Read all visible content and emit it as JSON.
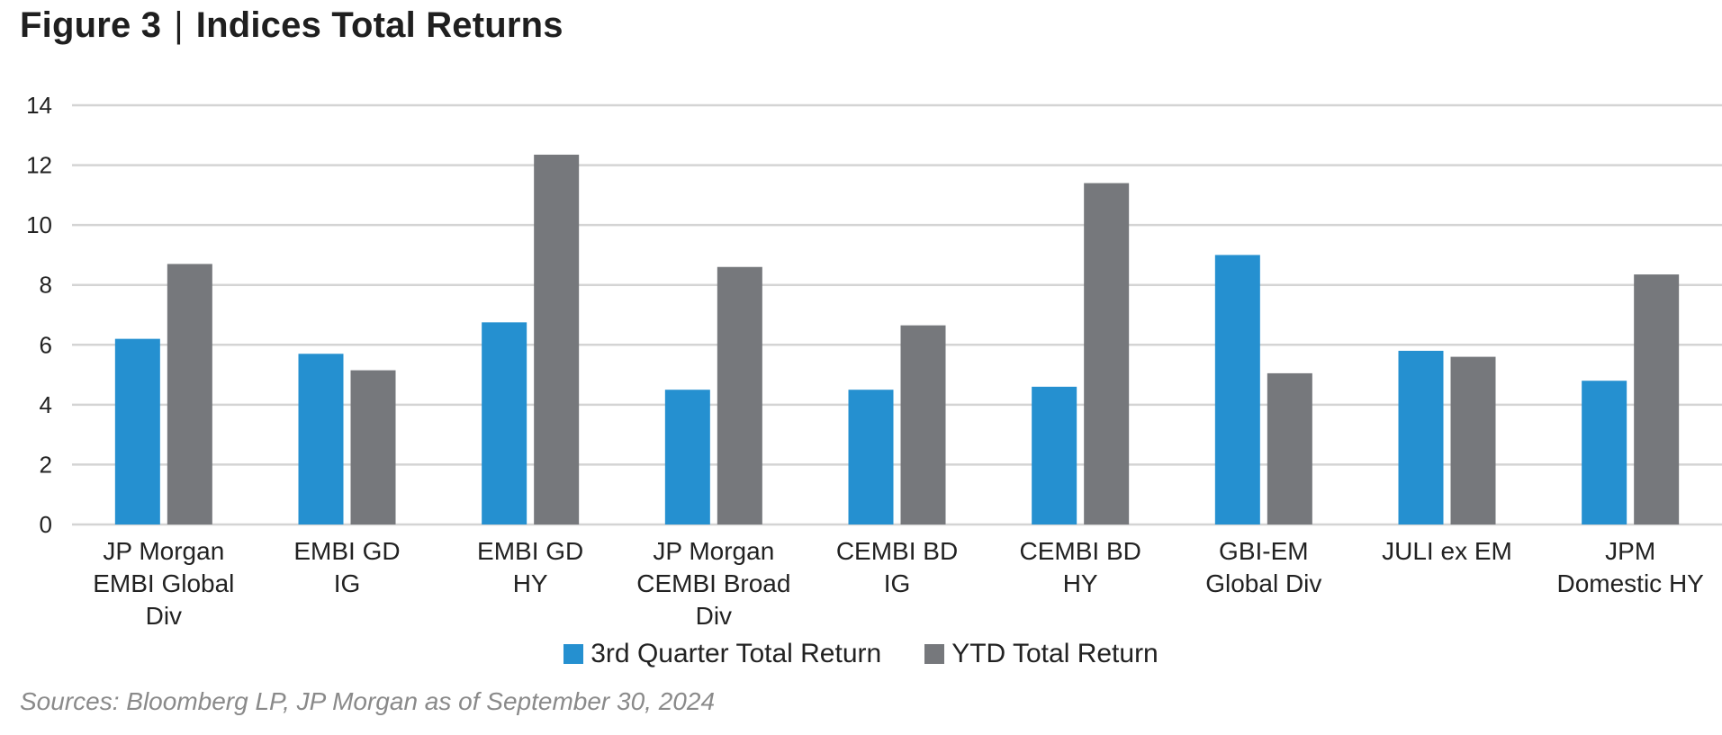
{
  "title": {
    "figure": "Figure 3",
    "separator": "|",
    "text": "Indices Total Returns"
  },
  "source": "Sources: Bloomberg LP, JP Morgan as of September 30, 2024",
  "colors": {
    "q3": "#2590d0",
    "ytd": "#76787c",
    "grid": "#d4d4d4"
  },
  "chart_data": {
    "type": "bar",
    "categories": [
      [
        "JP Morgan",
        "EMBI Global",
        "Div"
      ],
      [
        "EMBI GD",
        "IG"
      ],
      [
        "EMBI GD",
        "HY"
      ],
      [
        "JP Morgan",
        "CEMBI Broad",
        "Div"
      ],
      [
        "CEMBI BD",
        "IG"
      ],
      [
        "CEMBI BD",
        "HY"
      ],
      [
        "GBI-EM",
        "Global Div"
      ],
      [
        "JULI ex EM"
      ],
      [
        "JPM",
        "Domestic HY"
      ]
    ],
    "series": [
      {
        "name": "3rd Quarter Total Return",
        "values": [
          6.2,
          5.7,
          6.75,
          4.5,
          4.5,
          4.6,
          9.0,
          5.8,
          4.8
        ]
      },
      {
        "name": "YTD Total Return",
        "values": [
          8.7,
          5.15,
          12.35,
          8.6,
          6.65,
          11.4,
          5.05,
          5.6,
          8.35
        ]
      }
    ],
    "ylim": [
      0,
      14
    ],
    "yticks": [
      0,
      2,
      4,
      6,
      8,
      10,
      12,
      14
    ],
    "grid": true,
    "legend": "bottom-center"
  }
}
